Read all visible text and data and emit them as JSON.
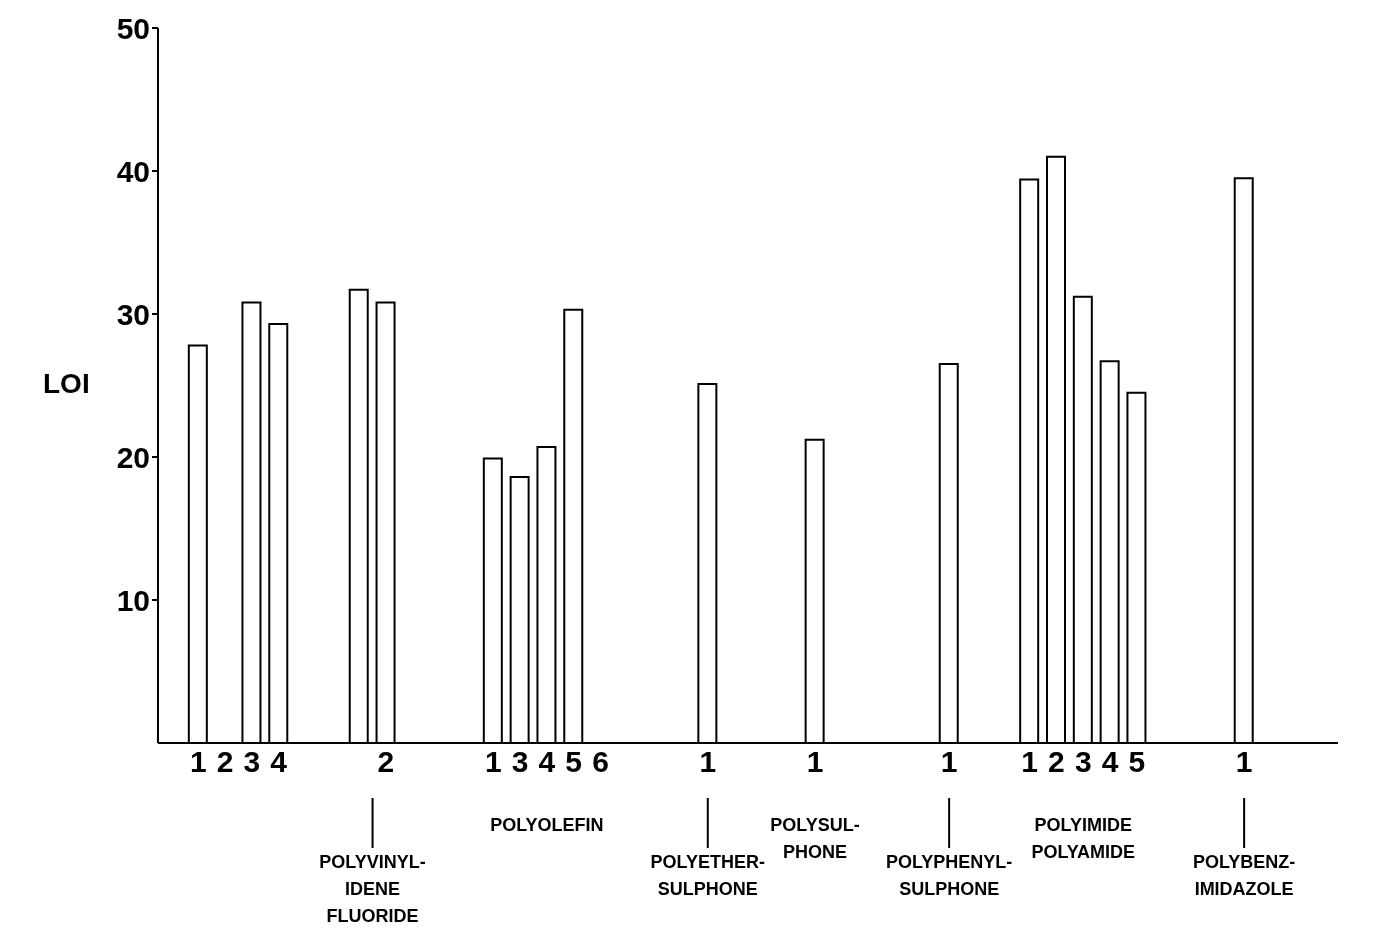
{
  "chart_data": {
    "type": "bar",
    "ylabel": "LOI",
    "categories": [
      null,
      "1",
      "2",
      "3",
      "4",
      null,
      null,
      null,
      "2",
      null,
      null,
      null,
      "1",
      "3",
      "4",
      "5",
      "6",
      null,
      null,
      null,
      "1",
      null,
      null,
      null,
      "1",
      null,
      null,
      null,
      null,
      "1",
      null,
      null,
      "1",
      "2",
      "3",
      "4",
      "5",
      null,
      null,
      null,
      "1",
      null,
      null,
      null
    ],
    "values": [
      null,
      27.8,
      null,
      30.8,
      29.3,
      null,
      null,
      31.7,
      30.8,
      null,
      null,
      null,
      19.9,
      18.6,
      20.7,
      30.3,
      null,
      null,
      null,
      null,
      25.1,
      null,
      null,
      null,
      21.2,
      null,
      null,
      null,
      null,
      26.5,
      null,
      null,
      39.4,
      41.0,
      31.2,
      26.7,
      24.5,
      null,
      null,
      null,
      39.5,
      null,
      null,
      null
    ],
    "color": "#ffffff",
    "ylim": [
      0,
      50
    ],
    "yticks": [
      10,
      20,
      30,
      40,
      50
    ],
    "grid": false,
    "annotations": [
      "POLYVINYL-\nIDENE\nFLUORIDE",
      "POLYOLEFIN",
      "POLYETHER-\nSULPHONE",
      "POLYSUL-\nPHONE",
      "POLYPHENYL-\nSULPHONE",
      "POLYIMIDE\nPOLYAMIDE",
      "POLYBENZ-\nIMIDAZOLE"
    ]
  }
}
